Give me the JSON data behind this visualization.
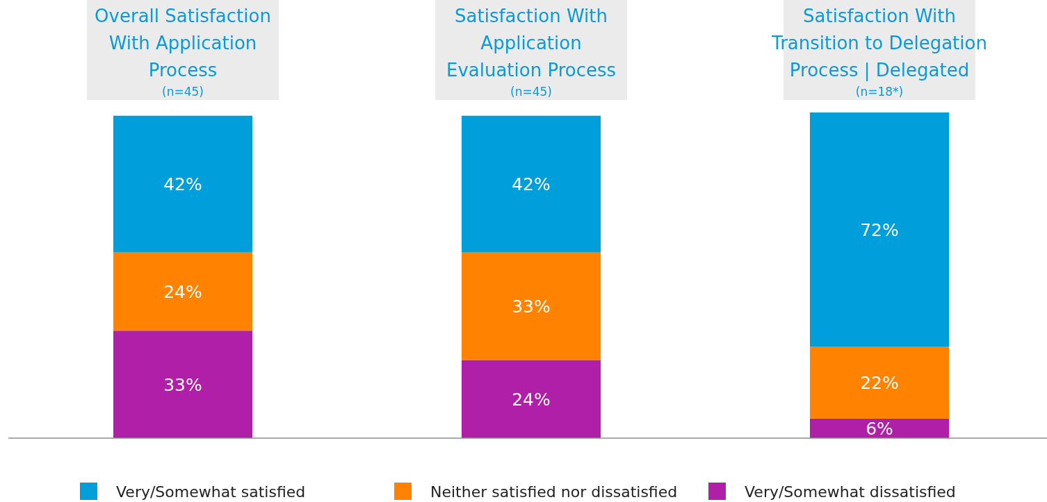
{
  "chart_data": {
    "type": "bar",
    "stacked": true,
    "legend": "bottom",
    "categories": [
      "Overall Satisfaction\nWith Application\nProcess\n(n=45)",
      "Satisfaction With\nApplication\nEvaluation Process\n(n=45)",
      "Satisfaction With\nTransition to Delegation\nProcess | Delegated\n(n=18*)"
    ],
    "series": [
      {
        "name": "Very/Somewhat dissatisfied",
        "color": "#b01fa8",
        "values": [
          33,
          24,
          6
        ],
        "value_labels": [
          "33%",
          "24%",
          "6%"
        ]
      },
      {
        "name": "Neither satisfied nor dissatisfied",
        "color": "#ff8200",
        "values": [
          24,
          33,
          22
        ],
        "value_labels": [
          "24%",
          "33%",
          "22%"
        ]
      },
      {
        "name": "Very/Somewhat satisfied",
        "color": "#009fdb",
        "values": [
          42,
          42,
          72
        ],
        "value_labels": [
          "42%",
          "42%",
          "72%"
        ]
      }
    ]
  }
}
